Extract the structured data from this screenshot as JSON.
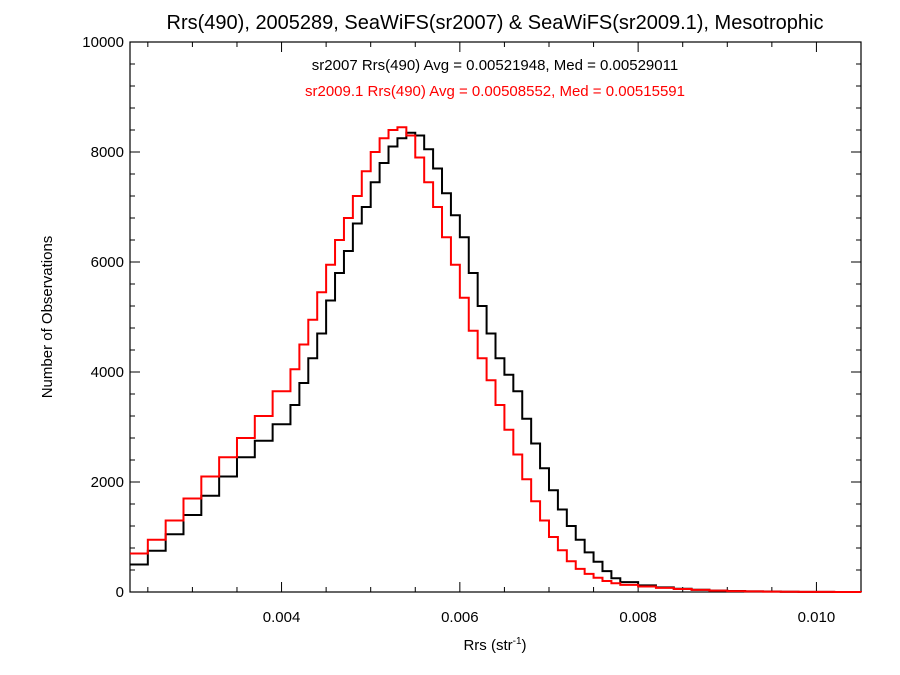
{
  "chart_data": {
    "type": "line",
    "step": true,
    "title": "Rrs(490), 2005289, SeaWiFS(sr2007) & SeaWiFS(sr2009.1), Mesotrophic",
    "xlabel": "Rrs (str",
    "xlabel_sup": "-1",
    "xlabel_end": ")",
    "ylabel": "Number of Observations",
    "xlim": [
      0.0023,
      0.0105
    ],
    "ylim": [
      0,
      10000
    ],
    "xticks": [
      0.004,
      0.006,
      0.008,
      0.01
    ],
    "xtick_labels": [
      "0.004",
      "0.006",
      "0.008",
      "0.010"
    ],
    "yticks": [
      0,
      2000,
      4000,
      6000,
      8000,
      10000
    ],
    "ytick_labels": [
      "0",
      "2000",
      "4000",
      "6000",
      "8000",
      "10000"
    ],
    "annotations": [
      {
        "text": "sr2007 Rrs(490) Avg = 0.00521948, Med = 0.00529011",
        "color": "#000000"
      },
      {
        "text": "sr2009.1 Rrs(490) Avg = 0.00508552, Med = 0.00515591",
        "color": "#ff0000"
      }
    ],
    "grid": false,
    "series": [
      {
        "color": "#000000",
        "x": [
          0.0023,
          0.0025,
          0.0027,
          0.0029,
          0.0031,
          0.0033,
          0.0035,
          0.0037,
          0.0039,
          0.0041,
          0.0042,
          0.0043,
          0.0044,
          0.0045,
          0.0046,
          0.0047,
          0.0048,
          0.0049,
          0.005,
          0.0051,
          0.0052,
          0.0053,
          0.0054,
          0.0055,
          0.0056,
          0.0057,
          0.0058,
          0.0059,
          0.006,
          0.0061,
          0.0062,
          0.0063,
          0.0064,
          0.0065,
          0.0066,
          0.0067,
          0.0068,
          0.0069,
          0.007,
          0.0071,
          0.0072,
          0.0073,
          0.0074,
          0.0075,
          0.0076,
          0.0077,
          0.0078,
          0.008,
          0.0082,
          0.0084,
          0.0086,
          0.0088,
          0.009,
          0.0092,
          0.0094,
          0.0096,
          0.0098,
          0.01,
          0.0102,
          0.0104,
          0.0105
        ],
        "values": [
          500,
          750,
          1050,
          1400,
          1750,
          2100,
          2450,
          2750,
          3050,
          3400,
          3800,
          4250,
          4700,
          5300,
          5800,
          6200,
          6700,
          7000,
          7450,
          7800,
          8100,
          8250,
          8350,
          8300,
          8050,
          7700,
          7250,
          6850,
          6450,
          5800,
          5200,
          4700,
          4250,
          3950,
          3650,
          3150,
          2700,
          2250,
          1850,
          1500,
          1200,
          950,
          720,
          550,
          380,
          250,
          180,
          120,
          85,
          60,
          40,
          25,
          18,
          12,
          8,
          5,
          3,
          2,
          1,
          1,
          0
        ]
      },
      {
        "color": "#ff0000",
        "x": [
          0.0023,
          0.0025,
          0.0027,
          0.0029,
          0.0031,
          0.0033,
          0.0035,
          0.0037,
          0.0039,
          0.0041,
          0.0042,
          0.0043,
          0.0044,
          0.0045,
          0.0046,
          0.0047,
          0.0048,
          0.0049,
          0.005,
          0.0051,
          0.0052,
          0.0053,
          0.0054,
          0.0055,
          0.0056,
          0.0057,
          0.0058,
          0.0059,
          0.006,
          0.0061,
          0.0062,
          0.0063,
          0.0064,
          0.0065,
          0.0066,
          0.0067,
          0.0068,
          0.0069,
          0.007,
          0.0071,
          0.0072,
          0.0073,
          0.0074,
          0.0075,
          0.0076,
          0.0077,
          0.0078,
          0.008,
          0.0082,
          0.0084,
          0.0086,
          0.0088,
          0.009,
          0.0092,
          0.0094,
          0.0096,
          0.0098,
          0.01,
          0.0102,
          0.0104,
          0.0105
        ],
        "values": [
          700,
          950,
          1300,
          1700,
          2100,
          2450,
          2800,
          3200,
          3650,
          4050,
          4500,
          4950,
          5450,
          5950,
          6400,
          6800,
          7200,
          7650,
          8000,
          8250,
          8400,
          8450,
          8300,
          7900,
          7450,
          7000,
          6450,
          5950,
          5350,
          4750,
          4250,
          3850,
          3400,
          2950,
          2500,
          2050,
          1650,
          1300,
          1000,
          760,
          560,
          420,
          330,
          260,
          200,
          160,
          130,
          100,
          75,
          55,
          38,
          25,
          17,
          11,
          7,
          4,
          3,
          2,
          1,
          1,
          0
        ]
      }
    ]
  }
}
